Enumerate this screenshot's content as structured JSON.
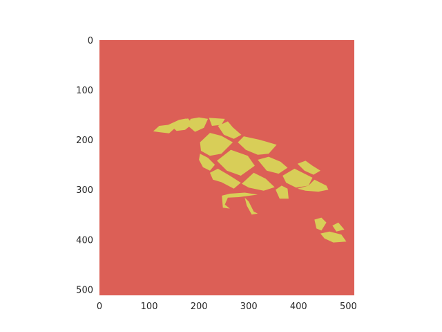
{
  "chart_data": {
    "type": "heatmap",
    "title": "",
    "xlabel": "",
    "ylabel": "",
    "image_size": [
      512,
      512
    ],
    "xlim": [
      0,
      512
    ],
    "ylim": [
      512,
      0
    ],
    "y_axis_inverted": true,
    "grid": false,
    "colors": {
      "background": "#dc5f56",
      "foreground": "#d8ce58"
    },
    "x_ticks": [
      0,
      100,
      200,
      300,
      400,
      500
    ],
    "x_tick_labels": [
      "0",
      "100",
      "200",
      "300",
      "400",
      "500"
    ],
    "y_ticks": [
      0,
      100,
      200,
      300,
      400,
      500
    ],
    "y_tick_labels": [
      "0",
      "100",
      "200",
      "300",
      "400",
      "500"
    ],
    "classes": [
      "background",
      "bird"
    ],
    "regions": [
      {
        "label": "bird-beak",
        "class": 1,
        "points": [
          [
            108,
            183
          ],
          [
            120,
            172
          ],
          [
            138,
            170
          ],
          [
            160,
            160
          ],
          [
            175,
            157
          ],
          [
            150,
            178
          ],
          [
            140,
            187
          ],
          [
            122,
            185
          ]
        ]
      },
      {
        "label": "bird-head-left",
        "class": 1,
        "points": [
          [
            148,
            176
          ],
          [
            165,
            160
          ],
          [
            178,
            157
          ],
          [
            187,
            168
          ],
          [
            172,
            180
          ],
          [
            155,
            182
          ]
        ]
      },
      {
        "label": "bird-head",
        "class": 1,
        "points": [
          [
            183,
            158
          ],
          [
            200,
            155
          ],
          [
            218,
            158
          ],
          [
            210,
            176
          ],
          [
            192,
            184
          ],
          [
            178,
            172
          ]
        ]
      },
      {
        "label": "bird-crown",
        "class": 1,
        "points": [
          [
            220,
            156
          ],
          [
            252,
            158
          ],
          [
            245,
            170
          ],
          [
            226,
            172
          ]
        ]
      },
      {
        "label": "bird-neck",
        "class": 1,
        "points": [
          [
            238,
            172
          ],
          [
            258,
            163
          ],
          [
            268,
            175
          ],
          [
            285,
            190
          ],
          [
            270,
            198
          ],
          [
            250,
            190
          ]
        ]
      },
      {
        "label": "bird-breast-upper",
        "class": 1,
        "points": [
          [
            202,
            205
          ],
          [
            222,
            186
          ],
          [
            245,
            192
          ],
          [
            268,
            205
          ],
          [
            245,
            228
          ],
          [
            222,
            232
          ],
          [
            204,
            222
          ]
        ]
      },
      {
        "label": "bird-back-upper",
        "class": 1,
        "points": [
          [
            278,
            205
          ],
          [
            290,
            193
          ],
          [
            322,
            200
          ],
          [
            356,
            210
          ],
          [
            340,
            228
          ],
          [
            318,
            230
          ],
          [
            294,
            220
          ]
        ]
      },
      {
        "label": "bird-breast-lower",
        "class": 1,
        "points": [
          [
            202,
            228
          ],
          [
            218,
            236
          ],
          [
            232,
            250
          ],
          [
            222,
            262
          ],
          [
            208,
            255
          ],
          [
            200,
            240
          ]
        ]
      },
      {
        "label": "bird-belly-center",
        "class": 1,
        "points": [
          [
            236,
            242
          ],
          [
            264,
            220
          ],
          [
            298,
            232
          ],
          [
            312,
            252
          ],
          [
            284,
            272
          ],
          [
            256,
            262
          ]
        ]
      },
      {
        "label": "bird-back-middle",
        "class": 1,
        "points": [
          [
            318,
            240
          ],
          [
            340,
            234
          ],
          [
            364,
            244
          ],
          [
            378,
            256
          ],
          [
            360,
            268
          ],
          [
            336,
            262
          ]
        ]
      },
      {
        "label": "bird-belly-lower",
        "class": 1,
        "points": [
          [
            222,
            266
          ],
          [
            238,
            258
          ],
          [
            262,
            272
          ],
          [
            284,
            286
          ],
          [
            270,
            298
          ],
          [
            245,
            285
          ],
          [
            228,
            280
          ]
        ]
      },
      {
        "label": "bird-belly-right",
        "class": 1,
        "points": [
          [
            286,
            288
          ],
          [
            310,
            266
          ],
          [
            334,
            278
          ],
          [
            352,
            295
          ],
          [
            330,
            302
          ],
          [
            300,
            296
          ]
        ]
      },
      {
        "label": "bird-wing-right",
        "class": 1,
        "points": [
          [
            368,
            272
          ],
          [
            392,
            258
          ],
          [
            428,
            276
          ],
          [
            420,
            292
          ],
          [
            395,
            296
          ],
          [
            375,
            286
          ]
        ]
      },
      {
        "label": "bird-wing-upper-right",
        "class": 1,
        "points": [
          [
            398,
            248
          ],
          [
            414,
            242
          ],
          [
            428,
            252
          ],
          [
            444,
            262
          ],
          [
            430,
            270
          ],
          [
            412,
            262
          ]
        ]
      },
      {
        "label": "bird-tail-base",
        "class": 1,
        "points": [
          [
            354,
            300
          ],
          [
            366,
            292
          ],
          [
            378,
            298
          ],
          [
            380,
            318
          ],
          [
            362,
            318
          ]
        ]
      },
      {
        "label": "bird-rump",
        "class": 1,
        "points": [
          [
            398,
            298
          ],
          [
            420,
            292
          ],
          [
            432,
            280
          ],
          [
            456,
            292
          ],
          [
            460,
            300
          ],
          [
            440,
            304
          ],
          [
            414,
            302
          ]
        ]
      },
      {
        "label": "bird-legs",
        "class": 1,
        "points": [
          [
            246,
            312
          ],
          [
            262,
            308
          ],
          [
            292,
            306
          ],
          [
            318,
            310
          ],
          [
            302,
            312
          ],
          [
            280,
            315
          ],
          [
            258,
            316
          ],
          [
            252,
            330
          ],
          [
            262,
            338
          ],
          [
            248,
            336
          ]
        ]
      },
      {
        "label": "bird-foot",
        "class": 1,
        "points": [
          [
            292,
            316
          ],
          [
            300,
            324
          ],
          [
            310,
            344
          ],
          [
            318,
            348
          ],
          [
            306,
            350
          ],
          [
            296,
            332
          ]
        ]
      },
      {
        "label": "bird-tail-feather-1",
        "class": 1,
        "points": [
          [
            432,
            360
          ],
          [
            446,
            356
          ],
          [
            456,
            366
          ],
          [
            446,
            382
          ],
          [
            436,
            378
          ]
        ]
      },
      {
        "label": "bird-tail-feather-2",
        "class": 1,
        "points": [
          [
            468,
            372
          ],
          [
            480,
            366
          ],
          [
            492,
            380
          ],
          [
            476,
            384
          ]
        ]
      },
      {
        "label": "bird-tail-tip",
        "class": 1,
        "points": [
          [
            444,
            388
          ],
          [
            462,
            384
          ],
          [
            486,
            390
          ],
          [
            496,
            404
          ],
          [
            470,
            406
          ],
          [
            452,
            398
          ]
        ]
      }
    ]
  }
}
